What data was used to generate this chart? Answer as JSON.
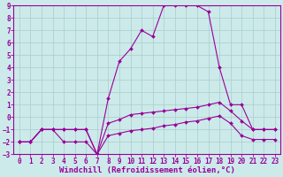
{
  "xlabel": "Windchill (Refroidissement éolien,°C)",
  "background_color": "#cceaea",
  "grid_color": "#aacccc",
  "line_color": "#990099",
  "hours": [
    0,
    1,
    2,
    3,
    4,
    5,
    6,
    7,
    8,
    9,
    10,
    11,
    12,
    13,
    14,
    15,
    16,
    17,
    18,
    19,
    20,
    21,
    22,
    23
  ],
  "series1": [
    -2,
    -2,
    -1,
    -1,
    -2,
    -2,
    -2,
    -3,
    1.5,
    4.5,
    5.5,
    7,
    6.5,
    9,
    9,
    9,
    9,
    8.5,
    4,
    1,
    1,
    -1,
    -1,
    -1
  ],
  "series2": [
    -2,
    -2,
    -1,
    -1,
    -1,
    -1,
    -1,
    -3,
    -0.5,
    -0.2,
    0.2,
    0.3,
    0.4,
    0.5,
    0.6,
    0.7,
    0.8,
    1.0,
    1.2,
    0.5,
    -0.3,
    -1.0,
    -1.0,
    -1.0
  ],
  "series3": [
    -2,
    -2,
    -1,
    -1,
    -1,
    -1,
    -1,
    -3,
    -1.5,
    -1.3,
    -1.1,
    -1.0,
    -0.9,
    -0.7,
    -0.6,
    -0.4,
    -0.3,
    -0.1,
    0.1,
    -0.5,
    -1.5,
    -1.8,
    -1.8,
    -1.8
  ],
  "ylim": [
    -3,
    9
  ],
  "xlim": [
    -0.5,
    23.5
  ],
  "yticks": [
    -3,
    -2,
    -1,
    0,
    1,
    2,
    3,
    4,
    5,
    6,
    7,
    8,
    9
  ],
  "xticks": [
    0,
    1,
    2,
    3,
    4,
    5,
    6,
    7,
    8,
    9,
    10,
    11,
    12,
    13,
    14,
    15,
    16,
    17,
    18,
    19,
    20,
    21,
    22,
    23
  ],
  "tick_fontsize": 5.5,
  "xlabel_fontsize": 6.5,
  "marker": "D",
  "markersize": 2.0,
  "linewidth": 0.8
}
